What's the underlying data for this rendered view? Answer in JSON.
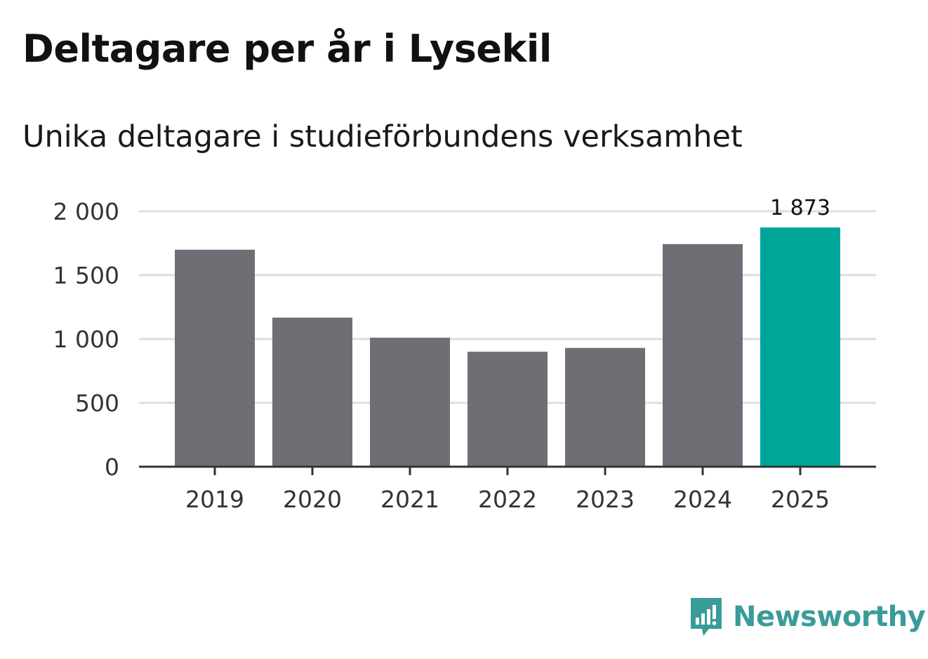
{
  "chart_data": {
    "type": "bar",
    "title": "Deltagare per år i Lysekil",
    "subtitle": "Unika deltagare i studieförbundens verksamhet",
    "categories": [
      "2019",
      "2020",
      "2021",
      "2022",
      "2023",
      "2024",
      "2025"
    ],
    "values": [
      1699,
      1167,
      1010,
      900,
      930,
      1743,
      1873
    ],
    "highlight_index": 6,
    "highlight_label": "1 873",
    "ylim": [
      0,
      2000
    ],
    "yticks": [
      0,
      500,
      1000,
      1500,
      2000
    ],
    "ytick_labels": [
      "0",
      "500",
      "1 000",
      "1 500",
      "2 000"
    ],
    "xlabel": "",
    "ylabel": "",
    "grid": true,
    "colors": {
      "bar": "#6f6e74",
      "highlight": "#00a59a",
      "grid": "#dddddd",
      "axis": "#333333",
      "tick_text": "#333333"
    }
  },
  "branding": {
    "logo_text": "Newsworthy",
    "logo_icon": "newsworthy-chart-bubble-icon",
    "logo_color": "#3a9c99"
  }
}
